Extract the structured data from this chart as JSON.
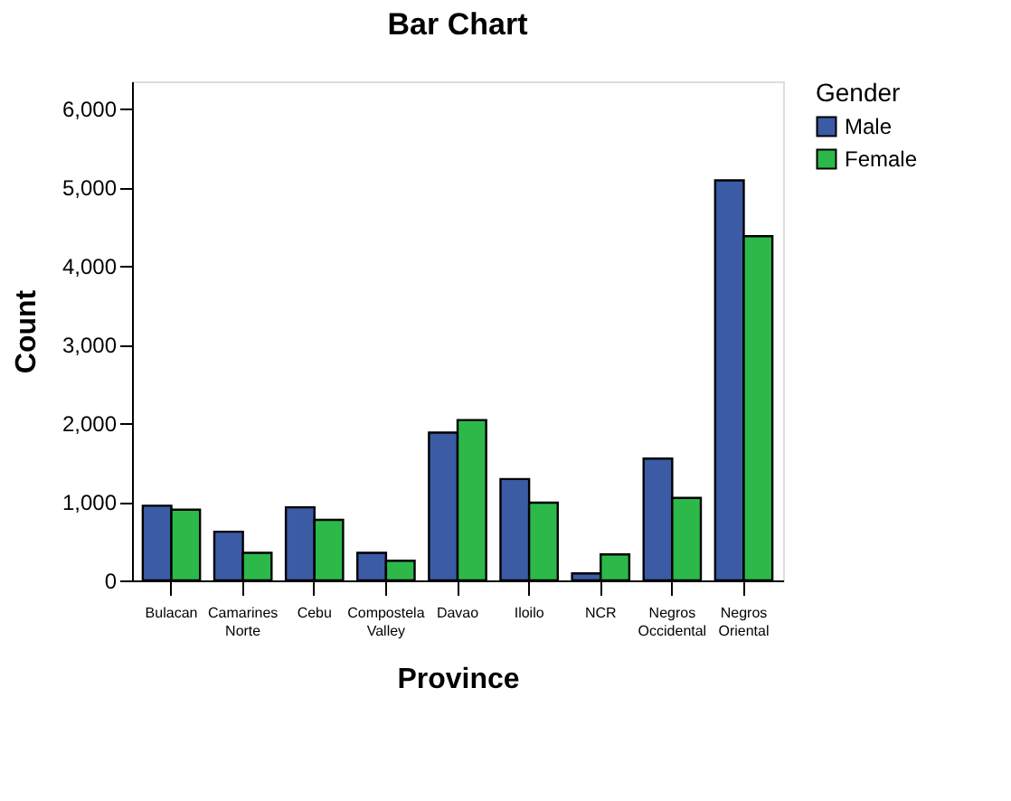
{
  "chart_data": {
    "type": "bar",
    "title": "Bar Chart",
    "xlabel": "Province",
    "ylabel": "Count",
    "legend_title": "Gender",
    "categories": [
      "Bulacan",
      "Camarines Norte",
      "Cebu",
      "Compostela Valley",
      "Davao",
      "Iloilo",
      "NCR",
      "Negros Occidental",
      "Negros Oriental"
    ],
    "series": [
      {
        "name": "Male",
        "color": "#3b5ba5",
        "values": [
          950,
          620,
          930,
          350,
          1880,
          1290,
          90,
          1550,
          5090
        ]
      },
      {
        "name": "Female",
        "color": "#2cb94a",
        "values": [
          900,
          350,
          770,
          250,
          2040,
          990,
          330,
          1050,
          4380
        ]
      }
    ],
    "ylim": [
      0,
      6350
    ],
    "yticks": [
      {
        "value": 0,
        "label": "0"
      },
      {
        "value": 1000,
        "label": "1,000"
      },
      {
        "value": 2000,
        "label": "2,000"
      },
      {
        "value": 3000,
        "label": "3,000"
      },
      {
        "value": 4000,
        "label": "4,000"
      },
      {
        "value": 5000,
        "label": "5,000"
      },
      {
        "value": 6000,
        "label": "6,000"
      }
    ],
    "grid": false,
    "legend": "top right"
  }
}
